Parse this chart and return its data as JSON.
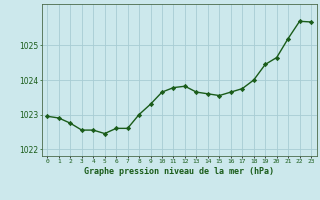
{
  "x": [
    0,
    1,
    2,
    3,
    4,
    5,
    6,
    7,
    8,
    9,
    10,
    11,
    12,
    13,
    14,
    15,
    16,
    17,
    18,
    19,
    20,
    21,
    22,
    23
  ],
  "y": [
    1022.95,
    1022.9,
    1022.75,
    1022.55,
    1022.55,
    1022.45,
    1022.6,
    1022.6,
    1023.0,
    1023.3,
    1023.65,
    1023.78,
    1023.82,
    1023.65,
    1023.6,
    1023.55,
    1023.65,
    1023.75,
    1024.0,
    1024.45,
    1024.65,
    1025.2,
    1025.7,
    1025.68
  ],
  "line_color": "#1a5c1a",
  "marker": "D",
  "marker_size": 2.2,
  "bg_color": "#cce8ec",
  "plot_bg_color": "#cce8ec",
  "grid_color": "#a8ccd4",
  "xlabel": "Graphe pression niveau de la mer (hPa)",
  "xlabel_color": "#1a5c1a",
  "tick_color": "#1a5c1a",
  "ylim": [
    1021.8,
    1026.2
  ],
  "yticks": [
    1022,
    1023,
    1024,
    1025
  ],
  "xticks": [
    0,
    1,
    2,
    3,
    4,
    5,
    6,
    7,
    8,
    9,
    10,
    11,
    12,
    13,
    14,
    15,
    16,
    17,
    18,
    19,
    20,
    21,
    22,
    23
  ],
  "xtick_labels": [
    "0",
    "1",
    "2",
    "3",
    "4",
    "5",
    "6",
    "7",
    "8",
    "9",
    "10",
    "11",
    "12",
    "13",
    "14",
    "15",
    "16",
    "17",
    "18",
    "19",
    "20",
    "21",
    "22",
    "23"
  ],
  "line_width": 1.0,
  "spine_color": "#4a6a4a"
}
